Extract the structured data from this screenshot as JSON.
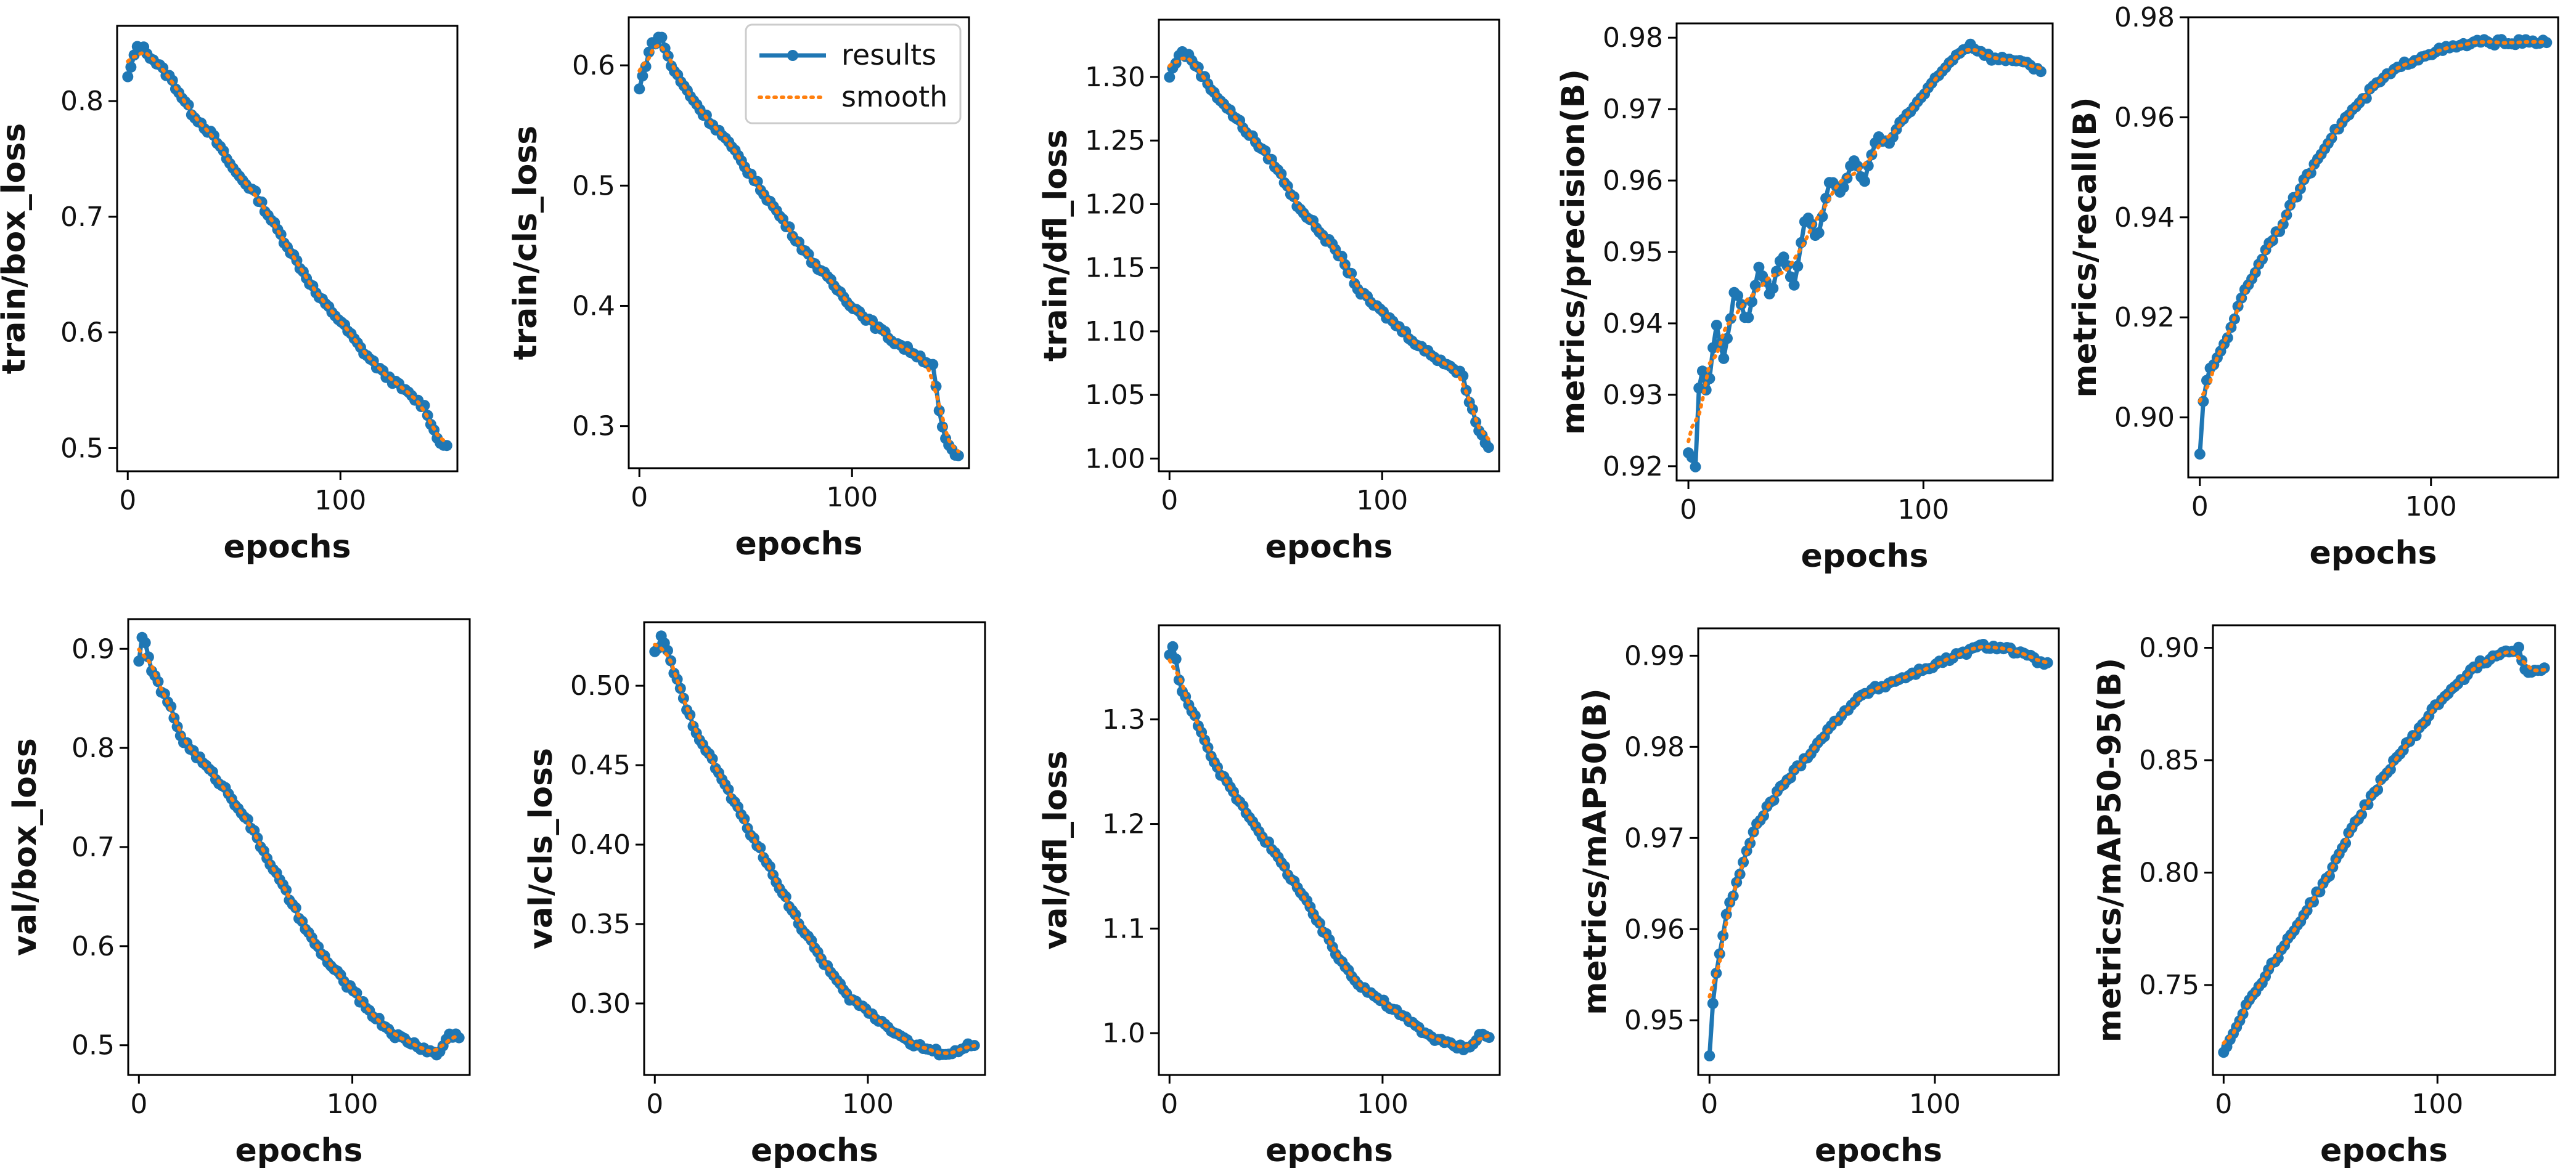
{
  "colors": {
    "results": "#1f77b4",
    "smooth": "#ff7f0e",
    "axes": "#000000",
    "background": "#ffffff"
  },
  "legend": {
    "results_label": "results",
    "smooth_label": "smooth",
    "placement": "top-right of train/cls_loss panel"
  },
  "chart_data": [
    {
      "type": "line",
      "title": "",
      "xlabel": "epochs",
      "ylabel": "train/box_loss",
      "xlim": [
        -5,
        155
      ],
      "ylim": [
        0.48,
        0.865
      ],
      "xticks": [
        0,
        100
      ],
      "yticks": [
        0.5,
        0.6,
        0.7,
        0.8
      ],
      "ytick_labels": [
        "0.5",
        "0.6",
        "0.7",
        "0.8"
      ],
      "points": [
        [
          0,
          0.82
        ],
        [
          5,
          0.85
        ],
        [
          10,
          0.84
        ],
        [
          20,
          0.82
        ],
        [
          30,
          0.79
        ],
        [
          40,
          0.77
        ],
        [
          50,
          0.74
        ],
        [
          60,
          0.72
        ],
        [
          70,
          0.69
        ],
        [
          80,
          0.66
        ],
        [
          90,
          0.63
        ],
        [
          100,
          0.61
        ],
        [
          110,
          0.585
        ],
        [
          120,
          0.565
        ],
        [
          130,
          0.55
        ],
        [
          140,
          0.535
        ],
        [
          145,
          0.51
        ],
        [
          150,
          0.5
        ]
      ],
      "series": [
        {
          "name": "results"
        },
        {
          "name": "smooth"
        }
      ]
    },
    {
      "type": "line",
      "title": "",
      "xlabel": "epochs",
      "ylabel": "train/cls_loss",
      "xlim": [
        -5,
        155
      ],
      "ylim": [
        0.265,
        0.64
      ],
      "xticks": [
        0,
        100
      ],
      "yticks": [
        0.3,
        0.4,
        0.5,
        0.6
      ],
      "ytick_labels": [
        "0.3",
        "0.4",
        "0.5",
        "0.6"
      ],
      "points": [
        [
          0,
          0.58
        ],
        [
          5,
          0.615
        ],
        [
          10,
          0.625
        ],
        [
          15,
          0.6
        ],
        [
          20,
          0.585
        ],
        [
          30,
          0.56
        ],
        [
          40,
          0.54
        ],
        [
          50,
          0.515
        ],
        [
          60,
          0.49
        ],
        [
          70,
          0.465
        ],
        [
          80,
          0.44
        ],
        [
          90,
          0.42
        ],
        [
          100,
          0.4
        ],
        [
          110,
          0.385
        ],
        [
          120,
          0.37
        ],
        [
          130,
          0.36
        ],
        [
          138,
          0.35
        ],
        [
          142,
          0.3
        ],
        [
          146,
          0.28
        ],
        [
          150,
          0.275
        ]
      ],
      "series": [
        {
          "name": "results"
        },
        {
          "name": "smooth"
        }
      ]
    },
    {
      "type": "line",
      "title": "",
      "xlabel": "epochs",
      "ylabel": "train/dfl_loss",
      "xlim": [
        -5,
        155
      ],
      "ylim": [
        0.99,
        1.345
      ],
      "xticks": [
        0,
        100
      ],
      "yticks": [
        1.0,
        1.05,
        1.1,
        1.15,
        1.2,
        1.25,
        1.3
      ],
      "ytick_labels": [
        "1.00",
        "1.05",
        "1.10",
        "1.15",
        "1.20",
        "1.25",
        "1.30"
      ],
      "points": [
        [
          0,
          1.3
        ],
        [
          5,
          1.32
        ],
        [
          10,
          1.315
        ],
        [
          20,
          1.29
        ],
        [
          30,
          1.27
        ],
        [
          40,
          1.25
        ],
        [
          50,
          1.23
        ],
        [
          60,
          1.2
        ],
        [
          70,
          1.18
        ],
        [
          80,
          1.16
        ],
        [
          90,
          1.13
        ],
        [
          100,
          1.115
        ],
        [
          110,
          1.1
        ],
        [
          120,
          1.085
        ],
        [
          130,
          1.075
        ],
        [
          138,
          1.065
        ],
        [
          142,
          1.04
        ],
        [
          146,
          1.02
        ],
        [
          150,
          1.01
        ]
      ],
      "series": [
        {
          "name": "results"
        },
        {
          "name": "smooth"
        }
      ]
    },
    {
      "type": "line",
      "title": "",
      "xlabel": "epochs",
      "ylabel": "metrics/precision(B)",
      "xlim": [
        -5,
        155
      ],
      "ylim": [
        0.918,
        0.982
      ],
      "xticks": [
        0,
        100
      ],
      "yticks": [
        0.92,
        0.93,
        0.94,
        0.95,
        0.96,
        0.97,
        0.98
      ],
      "ytick_labels": [
        "0.92",
        "0.93",
        "0.94",
        "0.95",
        "0.96",
        "0.97",
        "0.98"
      ],
      "points": [
        [
          0,
          0.922
        ],
        [
          3,
          0.92
        ],
        [
          5,
          0.935
        ],
        [
          8,
          0.93
        ],
        [
          12,
          0.94
        ],
        [
          15,
          0.935
        ],
        [
          20,
          0.945
        ],
        [
          25,
          0.94
        ],
        [
          30,
          0.948
        ],
        [
          35,
          0.944
        ],
        [
          40,
          0.95
        ],
        [
          45,
          0.945
        ],
        [
          50,
          0.955
        ],
        [
          55,
          0.952
        ],
        [
          60,
          0.96
        ],
        [
          65,
          0.958
        ],
        [
          70,
          0.963
        ],
        [
          75,
          0.96
        ],
        [
          80,
          0.966
        ],
        [
          85,
          0.965
        ],
        [
          90,
          0.968
        ],
        [
          95,
          0.97
        ],
        [
          100,
          0.972
        ],
        [
          105,
          0.974
        ],
        [
          110,
          0.976
        ],
        [
          115,
          0.978
        ],
        [
          120,
          0.979
        ],
        [
          125,
          0.978
        ],
        [
          130,
          0.977
        ],
        [
          140,
          0.977
        ],
        [
          150,
          0.975
        ]
      ],
      "series": [
        {
          "name": "results"
        },
        {
          "name": "smooth"
        }
      ]
    },
    {
      "type": "line",
      "title": "",
      "xlabel": "epochs",
      "ylabel": "metrics/recall(B)",
      "xlim": [
        -5,
        155
      ],
      "ylim": [
        0.888,
        0.98
      ],
      "xticks": [
        0,
        100
      ],
      "yticks": [
        0.9,
        0.92,
        0.94,
        0.96,
        0.98
      ],
      "ytick_labels": [
        "0.90",
        "0.92",
        "0.94",
        "0.96",
        "0.98"
      ],
      "points": [
        [
          0,
          0.893
        ],
        [
          2,
          0.906
        ],
        [
          5,
          0.91
        ],
        [
          10,
          0.914
        ],
        [
          15,
          0.92
        ],
        [
          20,
          0.926
        ],
        [
          25,
          0.93
        ],
        [
          30,
          0.935
        ],
        [
          35,
          0.938
        ],
        [
          40,
          0.943
        ],
        [
          45,
          0.947
        ],
        [
          50,
          0.951
        ],
        [
          55,
          0.955
        ],
        [
          60,
          0.958
        ],
        [
          65,
          0.961
        ],
        [
          70,
          0.963
        ],
        [
          75,
          0.966
        ],
        [
          80,
          0.968
        ],
        [
          90,
          0.971
        ],
        [
          100,
          0.973
        ],
        [
          110,
          0.974
        ],
        [
          120,
          0.975
        ],
        [
          130,
          0.975
        ],
        [
          140,
          0.975
        ],
        [
          150,
          0.975
        ]
      ],
      "series": [
        {
          "name": "results"
        },
        {
          "name": "smooth"
        }
      ]
    },
    {
      "type": "line",
      "title": "",
      "xlabel": "epochs",
      "ylabel": "val/box_loss",
      "xlim": [
        -5,
        155
      ],
      "ylim": [
        0.47,
        0.93
      ],
      "xticks": [
        0,
        100
      ],
      "yticks": [
        0.5,
        0.6,
        0.7,
        0.8,
        0.9
      ],
      "ytick_labels": [
        "0.5",
        "0.6",
        "0.7",
        "0.8",
        "0.9"
      ],
      "points": [
        [
          0,
          0.89
        ],
        [
          2,
          0.915
        ],
        [
          5,
          0.885
        ],
        [
          10,
          0.86
        ],
        [
          15,
          0.84
        ],
        [
          20,
          0.81
        ],
        [
          30,
          0.785
        ],
        [
          40,
          0.76
        ],
        [
          50,
          0.73
        ],
        [
          60,
          0.69
        ],
        [
          70,
          0.65
        ],
        [
          80,
          0.61
        ],
        [
          90,
          0.58
        ],
        [
          100,
          0.555
        ],
        [
          110,
          0.53
        ],
        [
          120,
          0.51
        ],
        [
          130,
          0.5
        ],
        [
          140,
          0.49
        ],
        [
          145,
          0.51
        ],
        [
          150,
          0.51
        ]
      ],
      "series": [
        {
          "name": "results"
        },
        {
          "name": "smooth"
        }
      ]
    },
    {
      "type": "line",
      "title": "",
      "xlabel": "epochs",
      "ylabel": "val/cls_loss",
      "xlim": [
        -5,
        155
      ],
      "ylim": [
        0.255,
        0.54
      ],
      "xticks": [
        0,
        100
      ],
      "yticks": [
        0.3,
        0.35,
        0.4,
        0.45,
        0.5
      ],
      "ytick_labels": [
        "0.30",
        "0.35",
        "0.40",
        "0.45",
        "0.50"
      ],
      "points": [
        [
          0,
          0.52
        ],
        [
          3,
          0.53
        ],
        [
          5,
          0.525
        ],
        [
          10,
          0.505
        ],
        [
          15,
          0.485
        ],
        [
          20,
          0.47
        ],
        [
          30,
          0.445
        ],
        [
          40,
          0.42
        ],
        [
          50,
          0.395
        ],
        [
          60,
          0.37
        ],
        [
          70,
          0.345
        ],
        [
          80,
          0.325
        ],
        [
          90,
          0.305
        ],
        [
          100,
          0.295
        ],
        [
          110,
          0.285
        ],
        [
          120,
          0.275
        ],
        [
          130,
          0.27
        ],
        [
          140,
          0.268
        ],
        [
          145,
          0.273
        ],
        [
          150,
          0.273
        ]
      ],
      "series": [
        {
          "name": "results"
        },
        {
          "name": "smooth"
        }
      ]
    },
    {
      "type": "line",
      "title": "",
      "xlabel": "epochs",
      "ylabel": "val/dfl_loss",
      "xlim": [
        -5,
        155
      ],
      "ylim": [
        0.96,
        1.39
      ],
      "xticks": [
        0,
        100
      ],
      "yticks": [
        1.0,
        1.1,
        1.2,
        1.3
      ],
      "ytick_labels": [
        "1.0",
        "1.1",
        "1.2",
        "1.3"
      ],
      "points": [
        [
          0,
          1.36
        ],
        [
          2,
          1.375
        ],
        [
          5,
          1.33
        ],
        [
          10,
          1.31
        ],
        [
          15,
          1.29
        ],
        [
          20,
          1.26
        ],
        [
          30,
          1.23
        ],
        [
          40,
          1.2
        ],
        [
          50,
          1.17
        ],
        [
          60,
          1.14
        ],
        [
          70,
          1.105
        ],
        [
          80,
          1.07
        ],
        [
          90,
          1.045
        ],
        [
          100,
          1.03
        ],
        [
          110,
          1.015
        ],
        [
          120,
          1.0
        ],
        [
          130,
          0.99
        ],
        [
          140,
          0.985
        ],
        [
          145,
          0.998
        ],
        [
          150,
          0.997
        ]
      ],
      "series": [
        {
          "name": "results"
        },
        {
          "name": "smooth"
        }
      ]
    },
    {
      "type": "line",
      "title": "",
      "xlabel": "epochs",
      "ylabel": "metrics/mAP50(B)",
      "xlim": [
        -5,
        155
      ],
      "ylim": [
        0.944,
        0.993
      ],
      "xticks": [
        0,
        100
      ],
      "yticks": [
        0.95,
        0.96,
        0.97,
        0.98,
        0.99
      ],
      "ytick_labels": [
        "0.95",
        "0.96",
        "0.97",
        "0.98",
        "0.99"
      ],
      "points": [
        [
          0,
          0.946
        ],
        [
          2,
          0.954
        ],
        [
          5,
          0.958
        ],
        [
          8,
          0.962
        ],
        [
          12,
          0.965
        ],
        [
          16,
          0.968
        ],
        [
          20,
          0.971
        ],
        [
          25,
          0.973
        ],
        [
          30,
          0.975
        ],
        [
          40,
          0.978
        ],
        [
          50,
          0.981
        ],
        [
          60,
          0.984
        ],
        [
          70,
          0.986
        ],
        [
          80,
          0.987
        ],
        [
          90,
          0.988
        ],
        [
          100,
          0.989
        ],
        [
          110,
          0.99
        ],
        [
          120,
          0.991
        ],
        [
          130,
          0.991
        ],
        [
          140,
          0.99
        ],
        [
          150,
          0.989
        ]
      ],
      "series": [
        {
          "name": "results"
        },
        {
          "name": "smooth"
        }
      ]
    },
    {
      "type": "line",
      "title": "",
      "xlabel": "epochs",
      "ylabel": "metrics/mAP50-95(B)",
      "xlim": [
        -5,
        155
      ],
      "ylim": [
        0.71,
        0.91
      ],
      "xticks": [
        0,
        100
      ],
      "yticks": [
        0.75,
        0.8,
        0.85,
        0.9
      ],
      "ytick_labels": [
        "0.75",
        "0.80",
        "0.85",
        "0.90"
      ],
      "points": [
        [
          0,
          0.72
        ],
        [
          5,
          0.73
        ],
        [
          10,
          0.74
        ],
        [
          20,
          0.755
        ],
        [
          30,
          0.77
        ],
        [
          40,
          0.785
        ],
        [
          50,
          0.8
        ],
        [
          60,
          0.82
        ],
        [
          70,
          0.835
        ],
        [
          80,
          0.85
        ],
        [
          90,
          0.862
        ],
        [
          100,
          0.875
        ],
        [
          110,
          0.885
        ],
        [
          120,
          0.893
        ],
        [
          130,
          0.898
        ],
        [
          138,
          0.9
        ],
        [
          142,
          0.888
        ],
        [
          146,
          0.89
        ],
        [
          150,
          0.891
        ]
      ],
      "series": [
        {
          "name": "results"
        },
        {
          "name": "smooth"
        }
      ]
    }
  ]
}
